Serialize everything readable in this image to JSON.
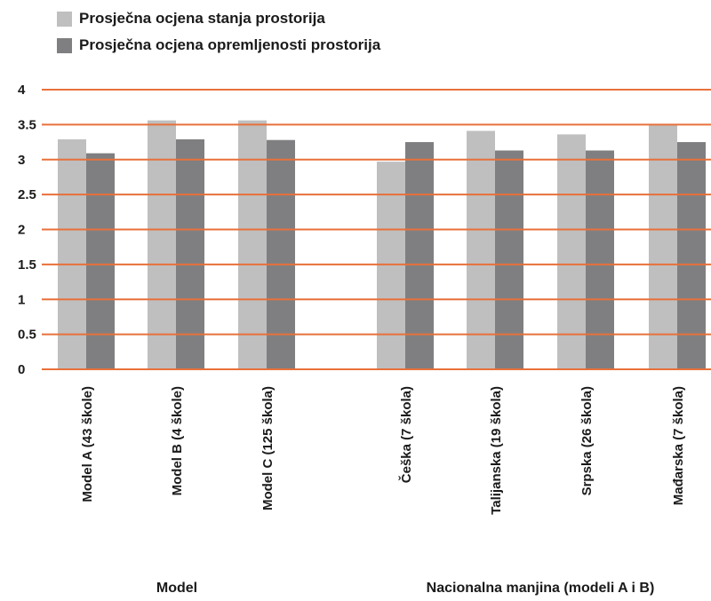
{
  "chart_data": {
    "type": "bar",
    "title": "",
    "xlabel": "",
    "ylabel": "",
    "ylim": [
      0,
      4
    ],
    "yticks": [
      0,
      0.5,
      1,
      1.5,
      2,
      2.5,
      3,
      3.5,
      4
    ],
    "grid": true,
    "legend_position": "top-left",
    "colors": {
      "series1": "#bfbfbf",
      "series2": "#7f7f81",
      "gridline": "#e8703a"
    },
    "categories": [
      "Model A (43 škole)",
      "Model B (4 škole)",
      "Model C (125 škola)",
      "Češka (7 škola)",
      "Talijanska (19 škola)",
      "Srpska (26 škola)",
      "Mađarska (7 škola)"
    ],
    "groups": [
      {
        "label": "Model",
        "categories": [
          0,
          1,
          2
        ]
      },
      {
        "label": "Nacionalna manjina (modeli A i B)",
        "categories": [
          3,
          4,
          5,
          6
        ]
      }
    ],
    "series": [
      {
        "name": "Prosječna ocjena stanja prostorija",
        "values": [
          3.29,
          3.56,
          3.56,
          2.97,
          3.41,
          3.36,
          3.5
        ]
      },
      {
        "name": "Prosječna ocjena opremljenosti prostorija",
        "values": [
          3.09,
          3.29,
          3.28,
          3.25,
          3.13,
          3.13,
          3.25
        ]
      }
    ]
  }
}
